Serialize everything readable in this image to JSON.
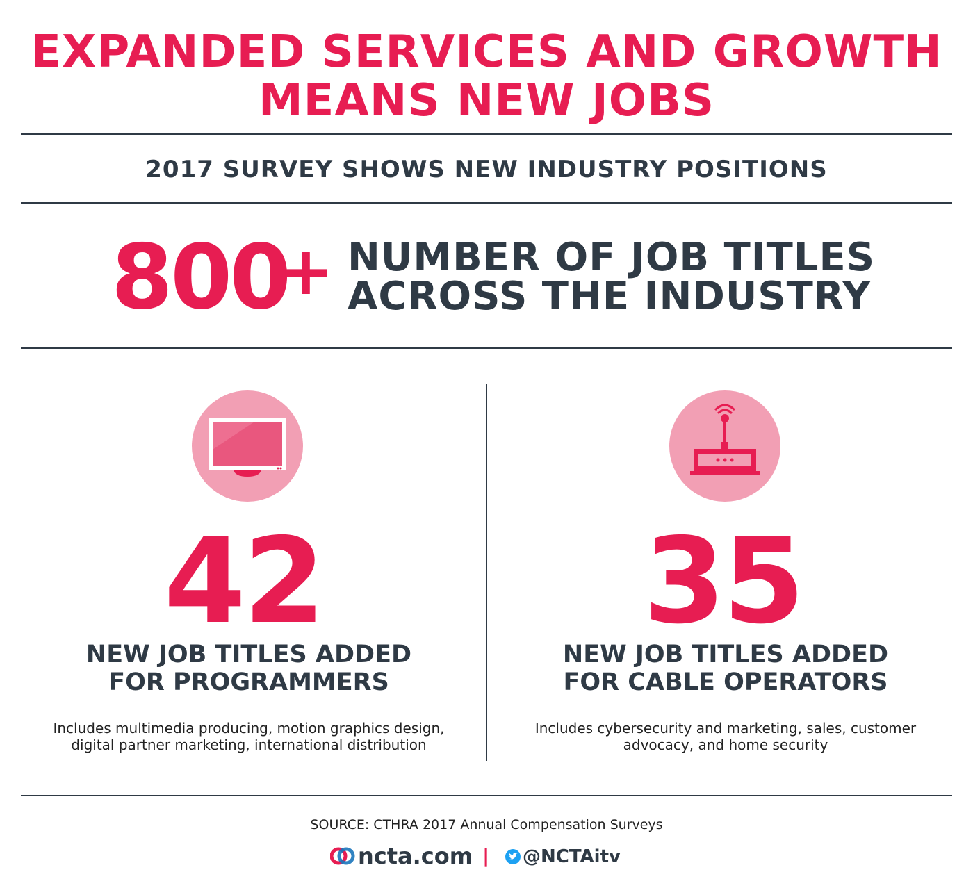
{
  "title": {
    "line1": "EXPANDED SERVICES AND GROWTH",
    "line2": "MEANS NEW JOBS"
  },
  "subtitle": "2017 SURVEY SHOWS NEW INDUSTRY POSITIONS",
  "headline_stat": {
    "number": "800",
    "plus": "+",
    "line1": "NUMBER OF JOB TITLES",
    "line2": "ACROSS THE INDUSTRY"
  },
  "programmers": {
    "icon": "tv-icon",
    "number": "42",
    "label_line1": "NEW JOB TITLES ADDED",
    "label_line2": "FOR PROGRAMMERS",
    "note_line1": "Includes multimedia producing, motion graphics design,",
    "note_line2": "digital partner marketing, international distribution"
  },
  "operators": {
    "icon": "router-icon",
    "number": "35",
    "label_line1": "NEW JOB TITLES ADDED",
    "label_line2": "FOR CABLE OPERATORS",
    "note_line1": "Includes cybersecurity and marketing, sales, customer",
    "note_line2": "advocacy, and home security"
  },
  "source": "SOURCE: CTHRA 2017 Annual Compensation Surveys",
  "footer": {
    "site": "ncta.com",
    "separator": "|",
    "handle": "@NCTAitv"
  },
  "colors": {
    "accent": "#e71d52",
    "dark": "#2f3a45",
    "icon_circle": "#f29fb4",
    "twitter": "#1da1f2"
  }
}
